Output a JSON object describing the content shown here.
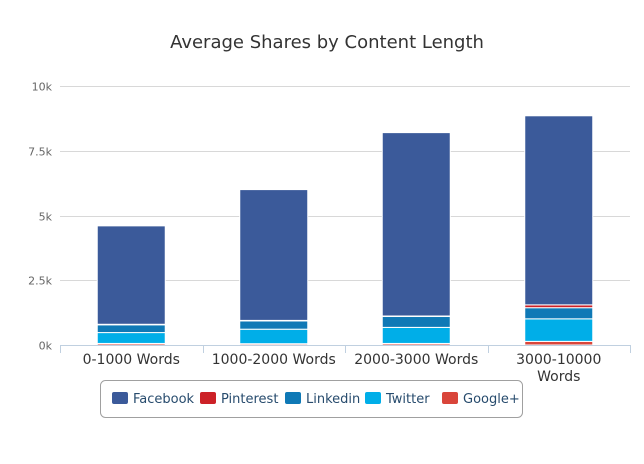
{
  "chart_data": {
    "type": "bar",
    "stacked": true,
    "title": "Average Shares by Content Length",
    "xlabel": "",
    "ylabel": "",
    "categories": [
      "0-1000 Words",
      "1000-2000 Words",
      "2000-3000 Words",
      "3000-10000 Words"
    ],
    "ylim": [
      0,
      10000
    ],
    "yticks": [
      0,
      2500,
      5000,
      7500,
      10000
    ],
    "ytick_labels": [
      "0k",
      "2.5k",
      "5k",
      "7.5k",
      "10k"
    ],
    "grid": true,
    "legend_position": "bottom",
    "series": [
      {
        "name": "Google+",
        "color": "#d9453a",
        "values": [
          60,
          50,
          60,
          140
        ]
      },
      {
        "name": "Twitter",
        "color": "#00aee8",
        "values": [
          420,
          560,
          620,
          870
        ]
      },
      {
        "name": "Linkedin",
        "color": "#0f79b6",
        "values": [
          300,
          320,
          420,
          430
        ]
      },
      {
        "name": "Pinterest",
        "color": "#cc2127",
        "values": [
          20,
          20,
          20,
          110
        ]
      },
      {
        "name": "Facebook",
        "color": "#3b5a9a",
        "values": [
          3800,
          5050,
          7080,
          7300
        ]
      }
    ],
    "legend_order": [
      "Facebook",
      "Pinterest",
      "Linkedin",
      "Twitter",
      "Google+"
    ]
  }
}
